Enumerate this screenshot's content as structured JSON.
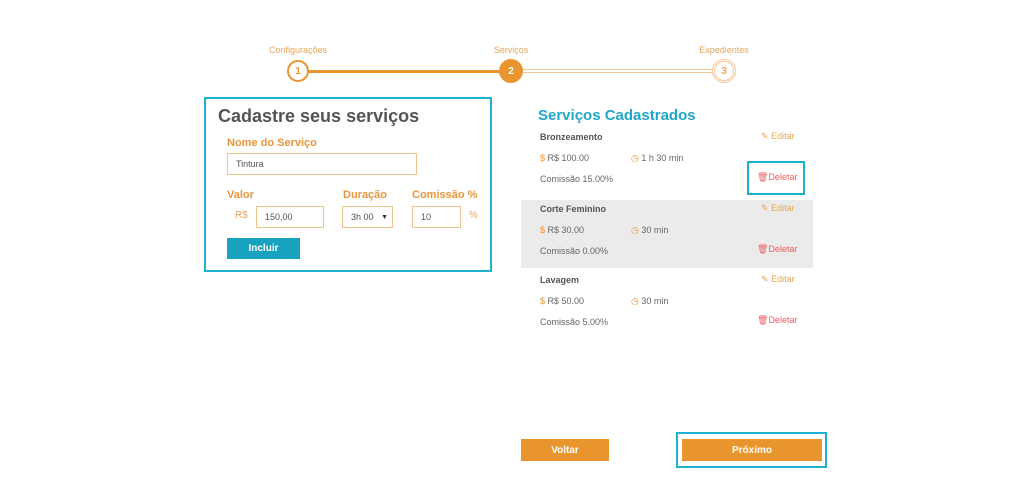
{
  "steps": [
    {
      "label": "Configurações",
      "number": "1"
    },
    {
      "label": "Serviços",
      "number": "2"
    },
    {
      "label": "Expedientes",
      "number": "3"
    }
  ],
  "form": {
    "title": "Cadastre seus serviços",
    "name_label": "Nome do Serviço",
    "name_value": "Tintura",
    "valor_label": "Valor",
    "currency": "R$",
    "valor_value": "150,00",
    "duracao_label": "Duração",
    "duracao_value": "3h 00",
    "comissao_label": "Comissão %",
    "comissao_value": "10",
    "percent": "%",
    "submit": "Incluir"
  },
  "list": {
    "title": "Serviços Cadastrados",
    "edit_label": "Editar",
    "delete_label": "Deletar",
    "items": [
      {
        "name": "Bronzeamento",
        "price": "R$ 100.00",
        "duration": "1 h 30 min",
        "commission": "Comissão 15.00%"
      },
      {
        "name": "Corte Feminino",
        "price": "R$ 30.00",
        "duration": "30 min",
        "commission": "Comissão 0.00%"
      },
      {
        "name": "Lavagem",
        "price": "R$ 50.00",
        "duration": "30 min",
        "commission": "Comissão 5.00%"
      }
    ]
  },
  "nav": {
    "back": "Voltar",
    "next": "Próximo"
  },
  "colors": {
    "accent": "#e8952e",
    "highlight": "#1fb0d0",
    "button_blue": "#17a2c0",
    "delete": "#ee5c5c"
  }
}
